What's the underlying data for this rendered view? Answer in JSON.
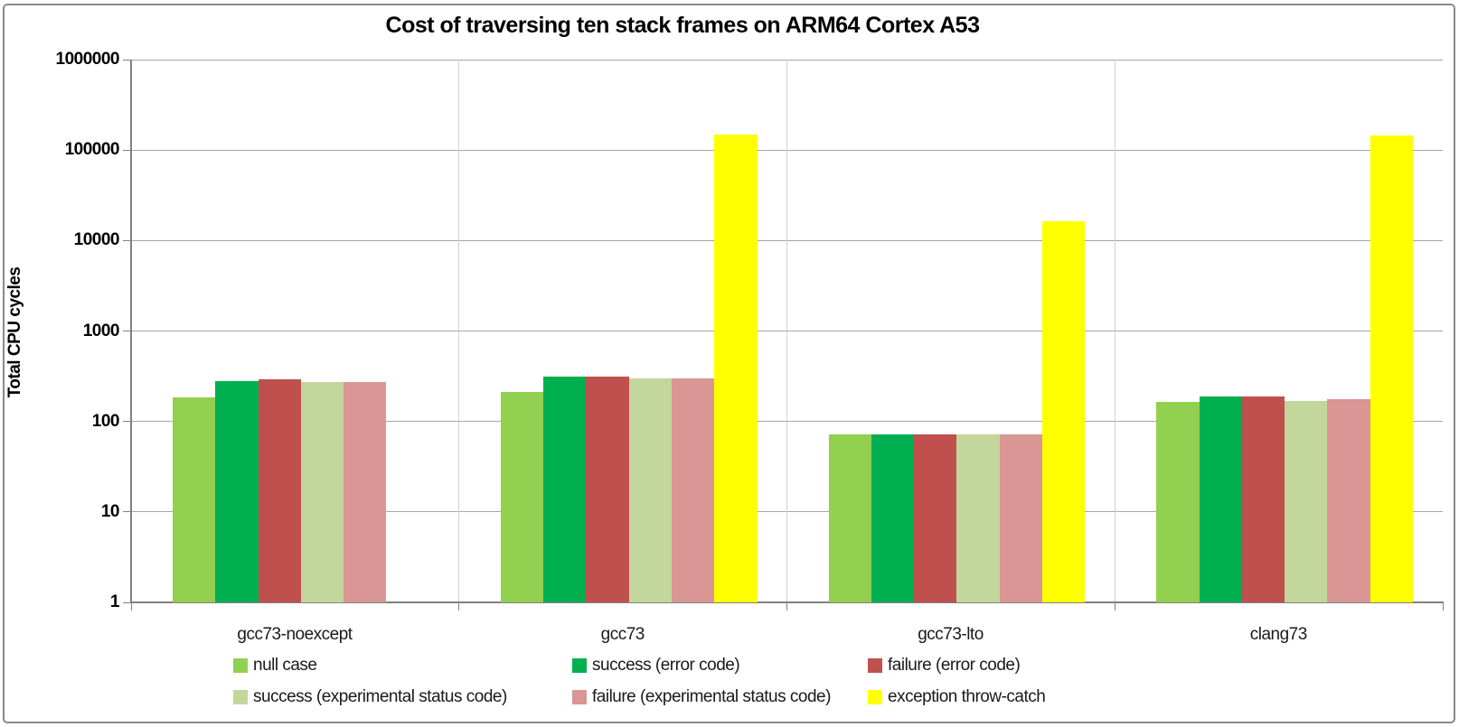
{
  "chart_data": {
    "type": "bar",
    "title": "Cost of traversing ten stack frames on ARM64 Cortex A53",
    "xlabel": "",
    "ylabel": "Total CPU cycles",
    "y_scale": "log10",
    "ylim": [
      1,
      1000000
    ],
    "y_ticks": [
      "1",
      "10",
      "100",
      "1000",
      "10000",
      "100000",
      "1000000"
    ],
    "grid": "horizontal-major",
    "legend_position": "bottom",
    "categories": [
      "gcc73-noexcept",
      "gcc73",
      "gcc73-lto",
      "clang73"
    ],
    "series": [
      {
        "name": "null case",
        "color": "#92D050",
        "values": [
          185,
          210,
          72,
          165
        ]
      },
      {
        "name": "success (error code)",
        "color": "#00B050",
        "values": [
          280,
          310,
          72,
          190
        ]
      },
      {
        "name": "failure (error code)",
        "color": "#C0504D",
        "values": [
          290,
          310,
          72,
          190
        ]
      },
      {
        "name": "success (experimental status code)",
        "color": "#C3D69B",
        "values": [
          275,
          300,
          72,
          170
        ]
      },
      {
        "name": "failure (experimental status code)",
        "color": "#D99694",
        "values": [
          275,
          300,
          72,
          175
        ]
      },
      {
        "name": "exception throw-catch",
        "color": "#FFFF00",
        "values": [
          null,
          150000,
          16500,
          145000
        ]
      }
    ]
  },
  "frame": {
    "border_color": "#8a8a8a",
    "gridline_color": "#a6a6a6",
    "separator_color": "#d2d2d2",
    "axis_color": "#808080"
  }
}
